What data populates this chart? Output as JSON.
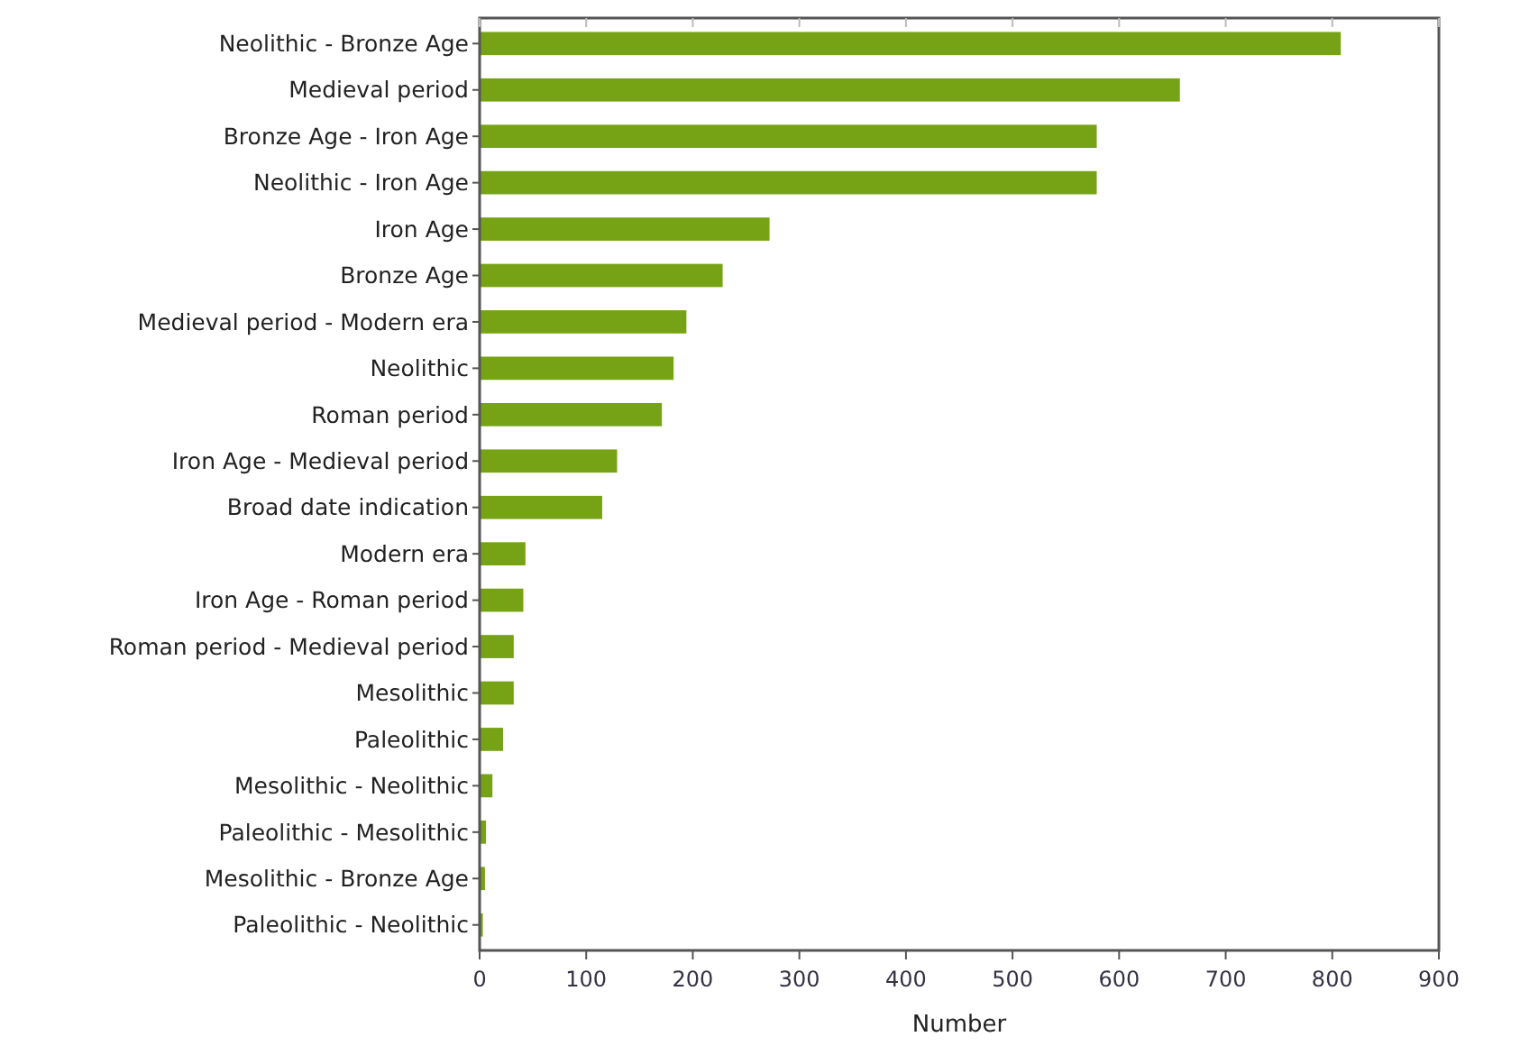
{
  "chart_data": {
    "type": "bar",
    "orientation": "horizontal",
    "xlabel": "Number",
    "categories": [
      "Neolithic - Bronze Age",
      "Medieval period",
      "Bronze Age - Iron Age",
      "Neolithic - Iron Age",
      "Iron Age",
      "Bronze Age",
      "Medieval period - Modern era",
      "Neolithic",
      "Roman period",
      "Iron Age - Medieval period",
      "Broad date indication",
      "Modern era",
      "Iron Age - Roman period",
      "Roman period - Medieval period",
      "Mesolithic",
      "Paleolithic",
      "Mesolithic - Neolithic",
      "Paleolithic - Mesolithic",
      "Mesolithic - Bronze Age",
      "Paleolithic - Neolithic"
    ],
    "values": [
      808,
      657,
      579,
      579,
      272,
      228,
      194,
      182,
      171,
      129,
      115,
      43,
      41,
      32,
      32,
      22,
      12,
      6,
      5,
      3
    ],
    "color": "#76a315",
    "xlim": [
      0,
      900
    ],
    "xticks": [
      0,
      100,
      200,
      300,
      400,
      500,
      600,
      700,
      800,
      900
    ],
    "grid": false
  }
}
